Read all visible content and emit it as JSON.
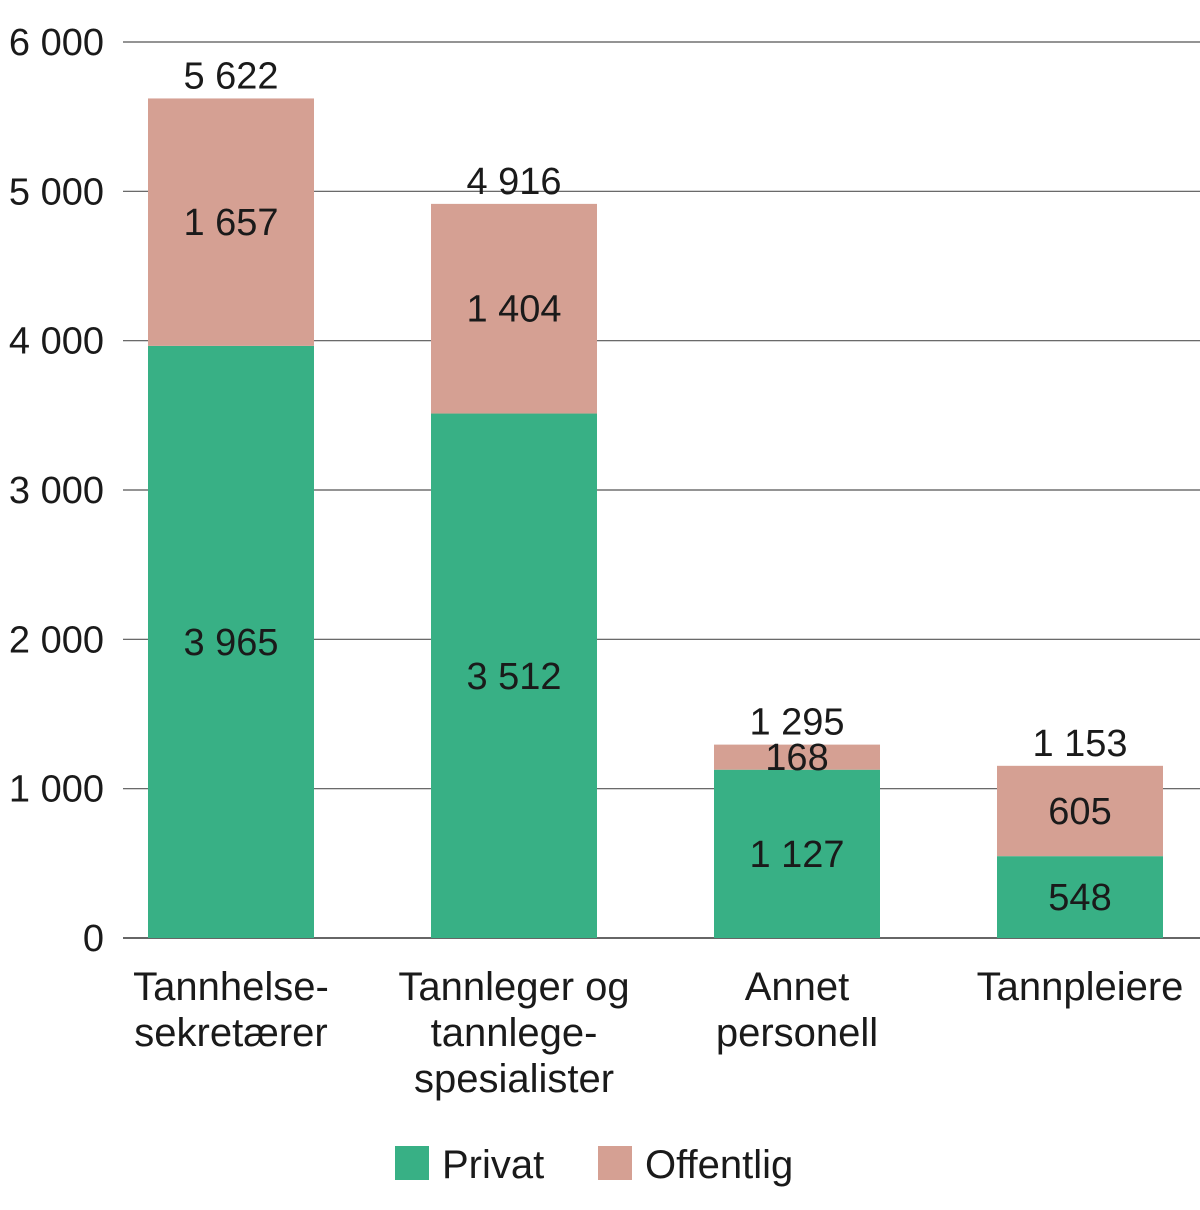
{
  "chart_data": {
    "type": "bar",
    "stacked": true,
    "categories": [
      [
        "Tannhelse-",
        "sekretærer"
      ],
      [
        "Tannleger og",
        "tannlege-",
        "spesialister"
      ],
      [
        "Annet",
        "personell"
      ],
      [
        "Tannpleiere"
      ]
    ],
    "series": [
      {
        "name": "Privat",
        "color": "#38b085",
        "values": [
          3965,
          3512,
          1127,
          548
        ],
        "labels": [
          "3 965",
          "3 512",
          "1 127",
          "548"
        ]
      },
      {
        "name": "Offentlig",
        "color": "#d5a093",
        "values": [
          1657,
          1404,
          168,
          605
        ],
        "labels": [
          "1 657",
          "1 404",
          "168",
          "605"
        ]
      }
    ],
    "totals": [
      5622,
      4916,
      1295,
      1153
    ],
    "total_labels": [
      "5 622",
      "4 916",
      "1 295",
      "1 153"
    ],
    "ylim": [
      0,
      6000
    ],
    "yticks": [
      0,
      1000,
      2000,
      3000,
      4000,
      5000,
      6000
    ],
    "ytick_labels": [
      "0",
      "1 000",
      "2 000",
      "3 000",
      "4 000",
      "5 000",
      "6 000"
    ],
    "grid": true,
    "legend": "bottom-center",
    "title": "",
    "xlabel": "",
    "ylabel": ""
  }
}
